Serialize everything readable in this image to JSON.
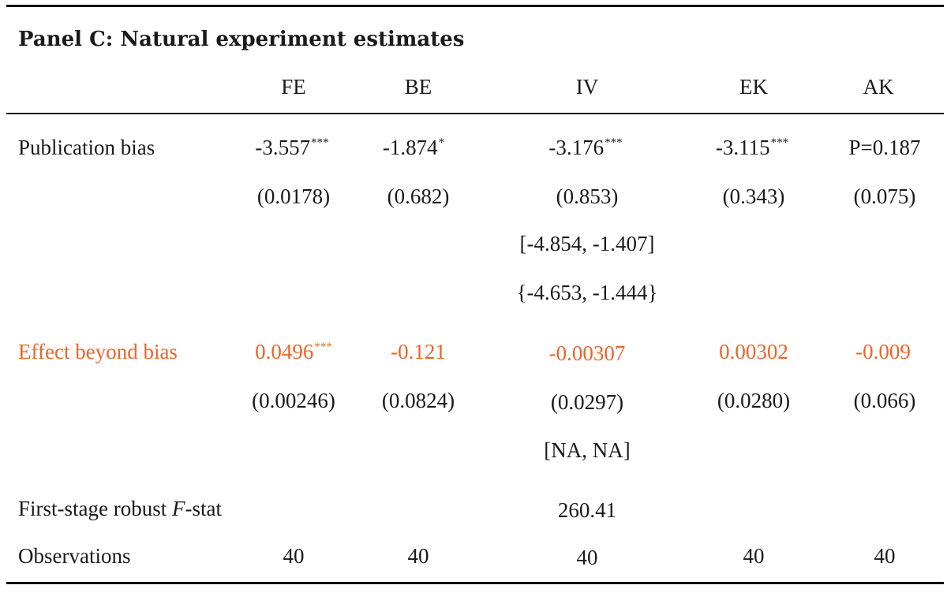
{
  "panel_title": "Panel C: Natural experiment estimates",
  "columns": [
    "FE",
    "BE",
    "IV",
    "EK",
    "AK"
  ],
  "accent_color": "#ee6427",
  "rows": {
    "publication_bias": {
      "label": "Publication bias",
      "estimates": [
        {
          "value": "-3.557",
          "stars": "***"
        },
        {
          "value": "-1.874",
          "stars": "*"
        },
        {
          "value": "-3.176",
          "stars": "***"
        },
        {
          "value": "-3.115",
          "stars": "***"
        },
        {
          "value": "P=0.187",
          "stars": ""
        }
      ],
      "std_errors": [
        "(0.0178)",
        "(0.682)",
        "(0.853)",
        "(0.343)",
        "(0.075)"
      ],
      "iv_interval_1": "[-4.854, -1.407]",
      "iv_interval_2": "{-4.653, -1.444}"
    },
    "effect_beyond_bias": {
      "label": "Effect beyond bias",
      "estimates": [
        {
          "value": "0.0496",
          "stars": "***"
        },
        {
          "value": "-0.121",
          "stars": ""
        },
        {
          "value": "-0.00307",
          "stars": ""
        },
        {
          "value": "0.00302",
          "stars": ""
        },
        {
          "value": "-0.009",
          "stars": ""
        }
      ],
      "std_errors": [
        "(0.00246)",
        "(0.0824)",
        "(0.0297)",
        "(0.0280)",
        "(0.066)"
      ],
      "iv_interval": "[NA, NA]"
    },
    "first_stage": {
      "label_prefix": "First-stage robust",
      "label_italic": "F",
      "label_suffix": "-stat",
      "iv_value": "260.41"
    },
    "observations": {
      "label": "Observations",
      "values": [
        "40",
        "40",
        "40",
        "40",
        "40"
      ]
    }
  }
}
